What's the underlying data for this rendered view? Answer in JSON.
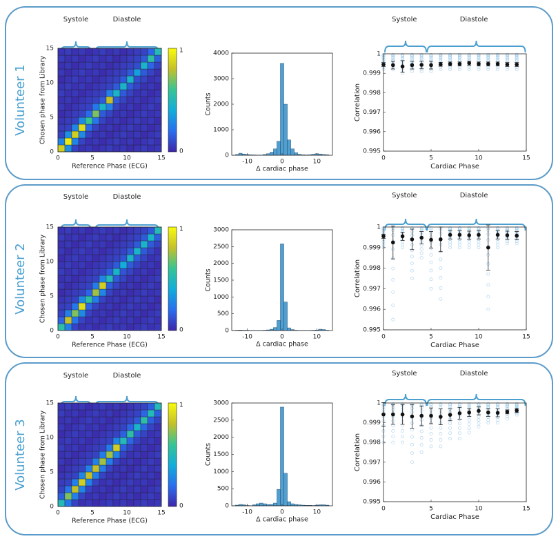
{
  "figure": {
    "accent_color": "#4a9fd0",
    "labels": {
      "systole": "Systole",
      "diastole": "Diastole",
      "heatmap_xlabel": "Reference Phase (ECG)",
      "heatmap_ylabel": "Chosen phase from Library",
      "hist_xlabel": "Δ cardiac phase",
      "hist_ylabel": "Counts",
      "corr_xlabel": "Cardiac Phase",
      "corr_ylabel": "Correlation",
      "colorbar_max": "1",
      "colorbar_min": "0"
    }
  },
  "chart_data": [
    {
      "type": "heatmap",
      "panel": "Volunteer 1",
      "xlabel": "Reference Phase (ECG)",
      "ylabel": "Chosen phase from Library",
      "xlim": [
        0,
        15
      ],
      "ylim": [
        0,
        15
      ],
      "xticks": [
        0,
        5,
        10,
        15
      ],
      "yticks": [
        0,
        5,
        10,
        15
      ],
      "colorbar_range": [
        0,
        1
      ],
      "diagonal_peaks": [
        0.85,
        0.95,
        0.85,
        0.9,
        0.6,
        0.7,
        0.45,
        0.8,
        0.45,
        0.45,
        0.45,
        0.35,
        0.45,
        0.55,
        0.5
      ]
    },
    {
      "type": "bar",
      "panel": "Volunteer 1",
      "xlabel": "Δ cardiac phase",
      "ylabel": "Counts",
      "ylim": [
        0,
        4000
      ],
      "yticks": [
        0,
        1000,
        2000,
        3000,
        4000
      ],
      "xticks": [
        -10,
        0,
        10
      ],
      "bins": [
        -13,
        -12,
        -11,
        -10,
        -9,
        -8,
        -7,
        -6,
        -5,
        -4,
        -3,
        -2,
        -1,
        0,
        1,
        2,
        3,
        4,
        5,
        6,
        7,
        8,
        9,
        10,
        11,
        12,
        13
      ],
      "values": [
        30,
        80,
        50,
        30,
        20,
        15,
        10,
        10,
        30,
        60,
        120,
        250,
        550,
        3600,
        2000,
        600,
        250,
        100,
        40,
        20,
        15,
        20,
        40,
        60,
        50,
        30,
        20
      ]
    },
    {
      "type": "scatter",
      "panel": "Volunteer 1",
      "xlabel": "Cardiac Phase",
      "ylabel": "Correlation",
      "xlim": [
        0,
        15
      ],
      "ylim": [
        0.995,
        1.0
      ],
      "xticks": [
        0,
        5,
        10,
        15
      ],
      "yticks": [
        "0.995",
        "0.996",
        "0.997",
        "0.998",
        "0.999",
        "1"
      ],
      "phases": [
        0,
        1,
        2,
        3,
        4,
        5,
        6,
        7,
        8,
        9,
        10,
        11,
        12,
        13,
        14
      ],
      "means": [
        0.99945,
        0.99942,
        0.99935,
        0.99942,
        0.99943,
        0.99942,
        0.99946,
        0.99948,
        0.99948,
        0.99952,
        0.99948,
        0.99948,
        0.99948,
        0.99945,
        0.99945
      ],
      "errors": [
        0.0001,
        0.0002,
        0.0003,
        0.0002,
        0.0002,
        0.0002,
        0.0001,
        0.0001,
        0.0001,
        0.0001,
        0.0001,
        0.0001,
        0.0001,
        0.0001,
        0.0001
      ],
      "spread_min": [
        0.9992,
        0.9992,
        0.999,
        0.9991,
        0.9991,
        0.9991,
        0.9992,
        0.9992,
        0.9992,
        0.9992,
        0.9992,
        0.9992,
        0.9992,
        0.9992,
        0.9992
      ]
    },
    {
      "type": "heatmap",
      "panel": "Volunteer 2",
      "xlabel": "Reference Phase (ECG)",
      "ylabel": "Chosen phase from Library",
      "xlim": [
        0,
        15
      ],
      "ylim": [
        0,
        15
      ],
      "xticks": [
        0,
        5,
        10,
        15
      ],
      "yticks": [
        0,
        5,
        10,
        15
      ],
      "colorbar_range": [
        0,
        1
      ],
      "diagonal_peaks": [
        0.55,
        0.8,
        0.7,
        0.9,
        0.55,
        0.75,
        0.85,
        0.5,
        0.45,
        0.4,
        0.45,
        0.45,
        0.45,
        0.45,
        0.5
      ]
    },
    {
      "type": "bar",
      "panel": "Volunteer 2",
      "xlabel": "Δ cardiac phase",
      "ylabel": "Counts",
      "ylim": [
        0,
        3000
      ],
      "yticks": [
        0,
        500,
        1000,
        1500,
        2000,
        2500,
        3000
      ],
      "xticks": [
        -10,
        0,
        10
      ],
      "bins": [
        -13,
        -12,
        -11,
        -10,
        -9,
        -8,
        -7,
        -6,
        -5,
        -4,
        -3,
        -2,
        -1,
        0,
        1,
        2,
        3,
        4,
        5,
        6,
        7,
        8,
        9,
        10,
        11,
        12,
        13
      ],
      "values": [
        10,
        15,
        10,
        10,
        5,
        5,
        5,
        5,
        10,
        20,
        40,
        90,
        300,
        2580,
        850,
        80,
        30,
        10,
        5,
        5,
        5,
        5,
        10,
        15,
        40,
        30,
        10
      ]
    },
    {
      "type": "scatter",
      "panel": "Volunteer 2",
      "xlabel": "Cardiac Phase",
      "ylabel": "Correlation",
      "xlim": [
        0,
        15
      ],
      "ylim": [
        0.995,
        1.0
      ],
      "xticks": [
        0,
        5,
        10,
        15
      ],
      "yticks": [
        "0.995",
        "0.996",
        "0.997",
        "0.998",
        "0.999",
        "1"
      ],
      "phases": [
        0,
        1,
        2,
        3,
        4,
        5,
        6,
        7,
        8,
        9,
        10,
        11,
        12,
        13,
        14
      ],
      "means": [
        0.99955,
        0.99925,
        0.99955,
        0.9994,
        0.99948,
        0.99938,
        0.9994,
        0.99962,
        0.99962,
        0.9996,
        0.99962,
        0.999,
        0.99962,
        0.9996,
        0.99958
      ],
      "errors": [
        0.0001,
        0.0008,
        0.0002,
        0.0005,
        0.0003,
        0.0004,
        0.0006,
        0.0002,
        0.0002,
        0.0002,
        0.0002,
        0.0011,
        0.0002,
        0.0002,
        0.0002
      ],
      "spread_min": [
        0.999,
        0.9955,
        0.999,
        0.9975,
        0.9985,
        0.997,
        0.9965,
        0.999,
        0.999,
        0.999,
        0.999,
        0.996,
        0.999,
        0.9992,
        0.9992
      ]
    },
    {
      "type": "heatmap",
      "panel": "Volunteer 3",
      "xlabel": "Reference Phase (ECG)",
      "ylabel": "Chosen phase from Library",
      "xlim": [
        0,
        15
      ],
      "ylim": [
        0,
        15
      ],
      "xticks": [
        0,
        5,
        10,
        15
      ],
      "yticks": [
        0,
        5,
        10,
        15
      ],
      "colorbar_range": [
        0,
        1
      ],
      "diagonal_peaks": [
        0.5,
        0.7,
        0.8,
        0.85,
        0.8,
        0.8,
        0.75,
        0.75,
        0.85,
        0.5,
        0.55,
        0.45,
        0.55,
        0.5,
        0.5
      ]
    },
    {
      "type": "bar",
      "panel": "Volunteer 3",
      "xlabel": "Δ cardiac phase",
      "ylabel": "Counts",
      "ylim": [
        0,
        3000
      ],
      "yticks": [
        0,
        500,
        1000,
        1500,
        2000,
        2500,
        3000
      ],
      "xticks": [
        -10,
        0,
        10
      ],
      "bins": [
        -13,
        -12,
        -11,
        -10,
        -9,
        -8,
        -7,
        -6,
        -5,
        -4,
        -3,
        -2,
        -1,
        0,
        1,
        2,
        3,
        4,
        5,
        6,
        7,
        8,
        9,
        10,
        11,
        12,
        13
      ],
      "values": [
        20,
        40,
        30,
        10,
        5,
        30,
        60,
        80,
        60,
        40,
        40,
        80,
        480,
        2880,
        950,
        120,
        60,
        40,
        30,
        20,
        15,
        15,
        10,
        20,
        30,
        30,
        20
      ]
    },
    {
      "type": "scatter",
      "panel": "Volunteer 3",
      "xlabel": "Cardiac Phase",
      "ylabel": "Correlation",
      "xlim": [
        0,
        15
      ],
      "ylim": [
        0.995,
        1.0
      ],
      "xticks": [
        0,
        5,
        10,
        15
      ],
      "yticks": [
        "0.995",
        "0.996",
        "0.997",
        "0.998",
        "0.999",
        "1"
      ],
      "phases": [
        0,
        1,
        2,
        3,
        4,
        5,
        6,
        7,
        8,
        9,
        10,
        11,
        12,
        13,
        14
      ],
      "means": [
        0.99942,
        0.99942,
        0.99942,
        0.99932,
        0.99935,
        0.99935,
        0.9993,
        0.9994,
        0.99948,
        0.99952,
        0.9996,
        0.99952,
        0.9995,
        0.99955,
        0.99962
      ],
      "errors": [
        0.0006,
        0.0005,
        0.0005,
        0.0006,
        0.0005,
        0.0004,
        0.0004,
        0.0003,
        0.0003,
        0.0002,
        0.0002,
        0.0002,
        0.0002,
        0.0001,
        0.0001
      ],
      "spread_min": [
        0.998,
        0.998,
        0.998,
        0.997,
        0.9975,
        0.9978,
        0.9978,
        0.9982,
        0.9982,
        0.9985,
        0.9988,
        0.999,
        0.999,
        0.9992,
        0.9994
      ]
    }
  ],
  "panels": [
    {
      "title": "Volunteer 1"
    },
    {
      "title": "Volunteer 2"
    },
    {
      "title": "Volunteer 3"
    }
  ]
}
